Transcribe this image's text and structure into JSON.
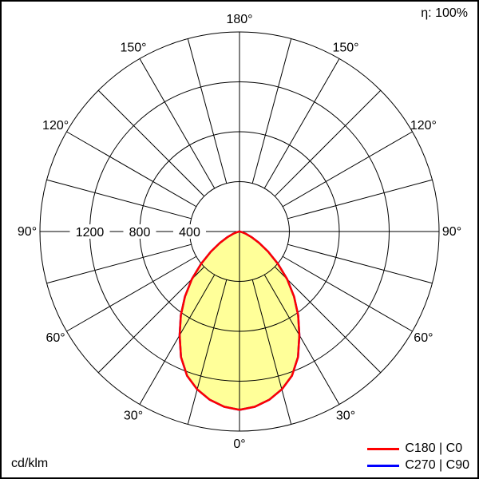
{
  "frame": {
    "efficiency": "η: 100%",
    "units": "cd/klm"
  },
  "legend": {
    "items": [
      {
        "label": "C180 | C0",
        "color": "#ff0000"
      },
      {
        "label": "C270 | C90",
        "color": "#0000ff"
      }
    ]
  },
  "chart_data": {
    "type": "polar",
    "subtype": "luminous-intensity-distribution",
    "title": "",
    "units": "cd/klm",
    "efficiency": "η: 100%",
    "orientation": "0° at bottom (nadir), 180° at top",
    "grid": true,
    "radial_ticks": [
      400,
      800,
      1200
    ],
    "radial_tick_labels": [
      "400",
      "800",
      "1200"
    ],
    "radial_max": 1600,
    "ring_values": [
      400,
      800,
      1200,
      1600
    ],
    "spoke_step_deg": 15,
    "angle_tick_deg": [
      0,
      30,
      60,
      90,
      120,
      150,
      180
    ],
    "angle_tick_labels": [
      "0°",
      "30°",
      "60°",
      "90°",
      "120°",
      "150°",
      "180°"
    ],
    "legend_position": "bottom-right",
    "symmetric": true,
    "series": [
      {
        "name": "C270 | C90",
        "color": "#0000ff",
        "fill": "none",
        "gamma_deg": [
          0,
          5,
          10,
          15,
          20,
          25,
          30,
          35,
          40,
          45,
          50,
          55,
          60,
          65,
          70,
          75,
          80,
          85,
          90
        ],
        "values": [
          1430,
          1410,
          1370,
          1310,
          1230,
          1110,
          960,
          820,
          680,
          540,
          400,
          280,
          180,
          105,
          55,
          22,
          7,
          2,
          0
        ]
      },
      {
        "name": "C180 | C0",
        "color": "#ff0000",
        "fill": "#ffff99",
        "gamma_deg": [
          0,
          5,
          10,
          15,
          20,
          25,
          30,
          35,
          40,
          45,
          50,
          55,
          60,
          65,
          70,
          75,
          80,
          85,
          90
        ],
        "values": [
          1430,
          1410,
          1370,
          1310,
          1230,
          1110,
          960,
          820,
          680,
          540,
          400,
          280,
          180,
          105,
          55,
          22,
          7,
          2,
          0
        ]
      }
    ]
  }
}
